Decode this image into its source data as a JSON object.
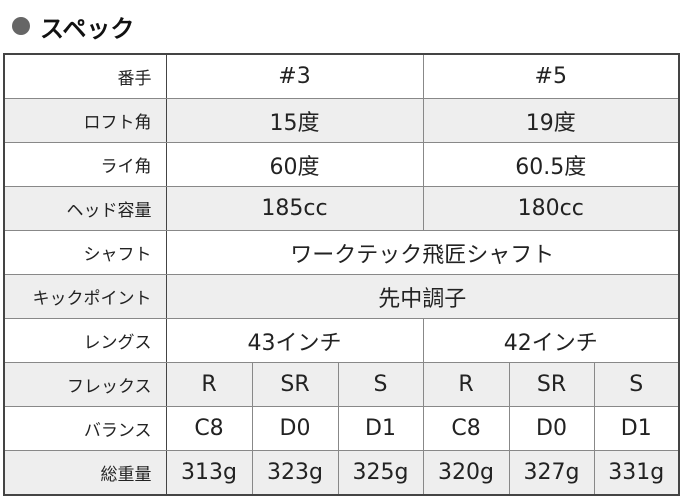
{
  "title": "スペック",
  "rows": [
    {
      "label": "番手",
      "values": [
        "#3",
        "#5"
      ]
    },
    {
      "label": "ロフト角",
      "values": [
        "15度",
        "19度"
      ]
    },
    {
      "label": "ライ角",
      "values": [
        "60度",
        "60.5度"
      ]
    },
    {
      "label": "ヘッド容量",
      "values": [
        "185cc",
        "180cc"
      ]
    },
    {
      "label": "シャフト",
      "values": [
        "ワークテック飛匠シャフト"
      ]
    },
    {
      "label": "キックポイント",
      "values": [
        "先中調子"
      ]
    },
    {
      "label": "レングス",
      "values": [
        "43インチ",
        "42インチ"
      ]
    },
    {
      "label": "フレックス",
      "values": [
        "R",
        "SR",
        "S",
        "R",
        "SR",
        "S"
      ]
    },
    {
      "label": "バランス",
      "values": [
        "C8",
        "D0",
        "D1",
        "C8",
        "D0",
        "D1"
      ]
    },
    {
      "label": "総重量",
      "values": [
        "313g",
        "323g",
        "325g",
        "320g",
        "327g",
        "331g"
      ]
    }
  ]
}
